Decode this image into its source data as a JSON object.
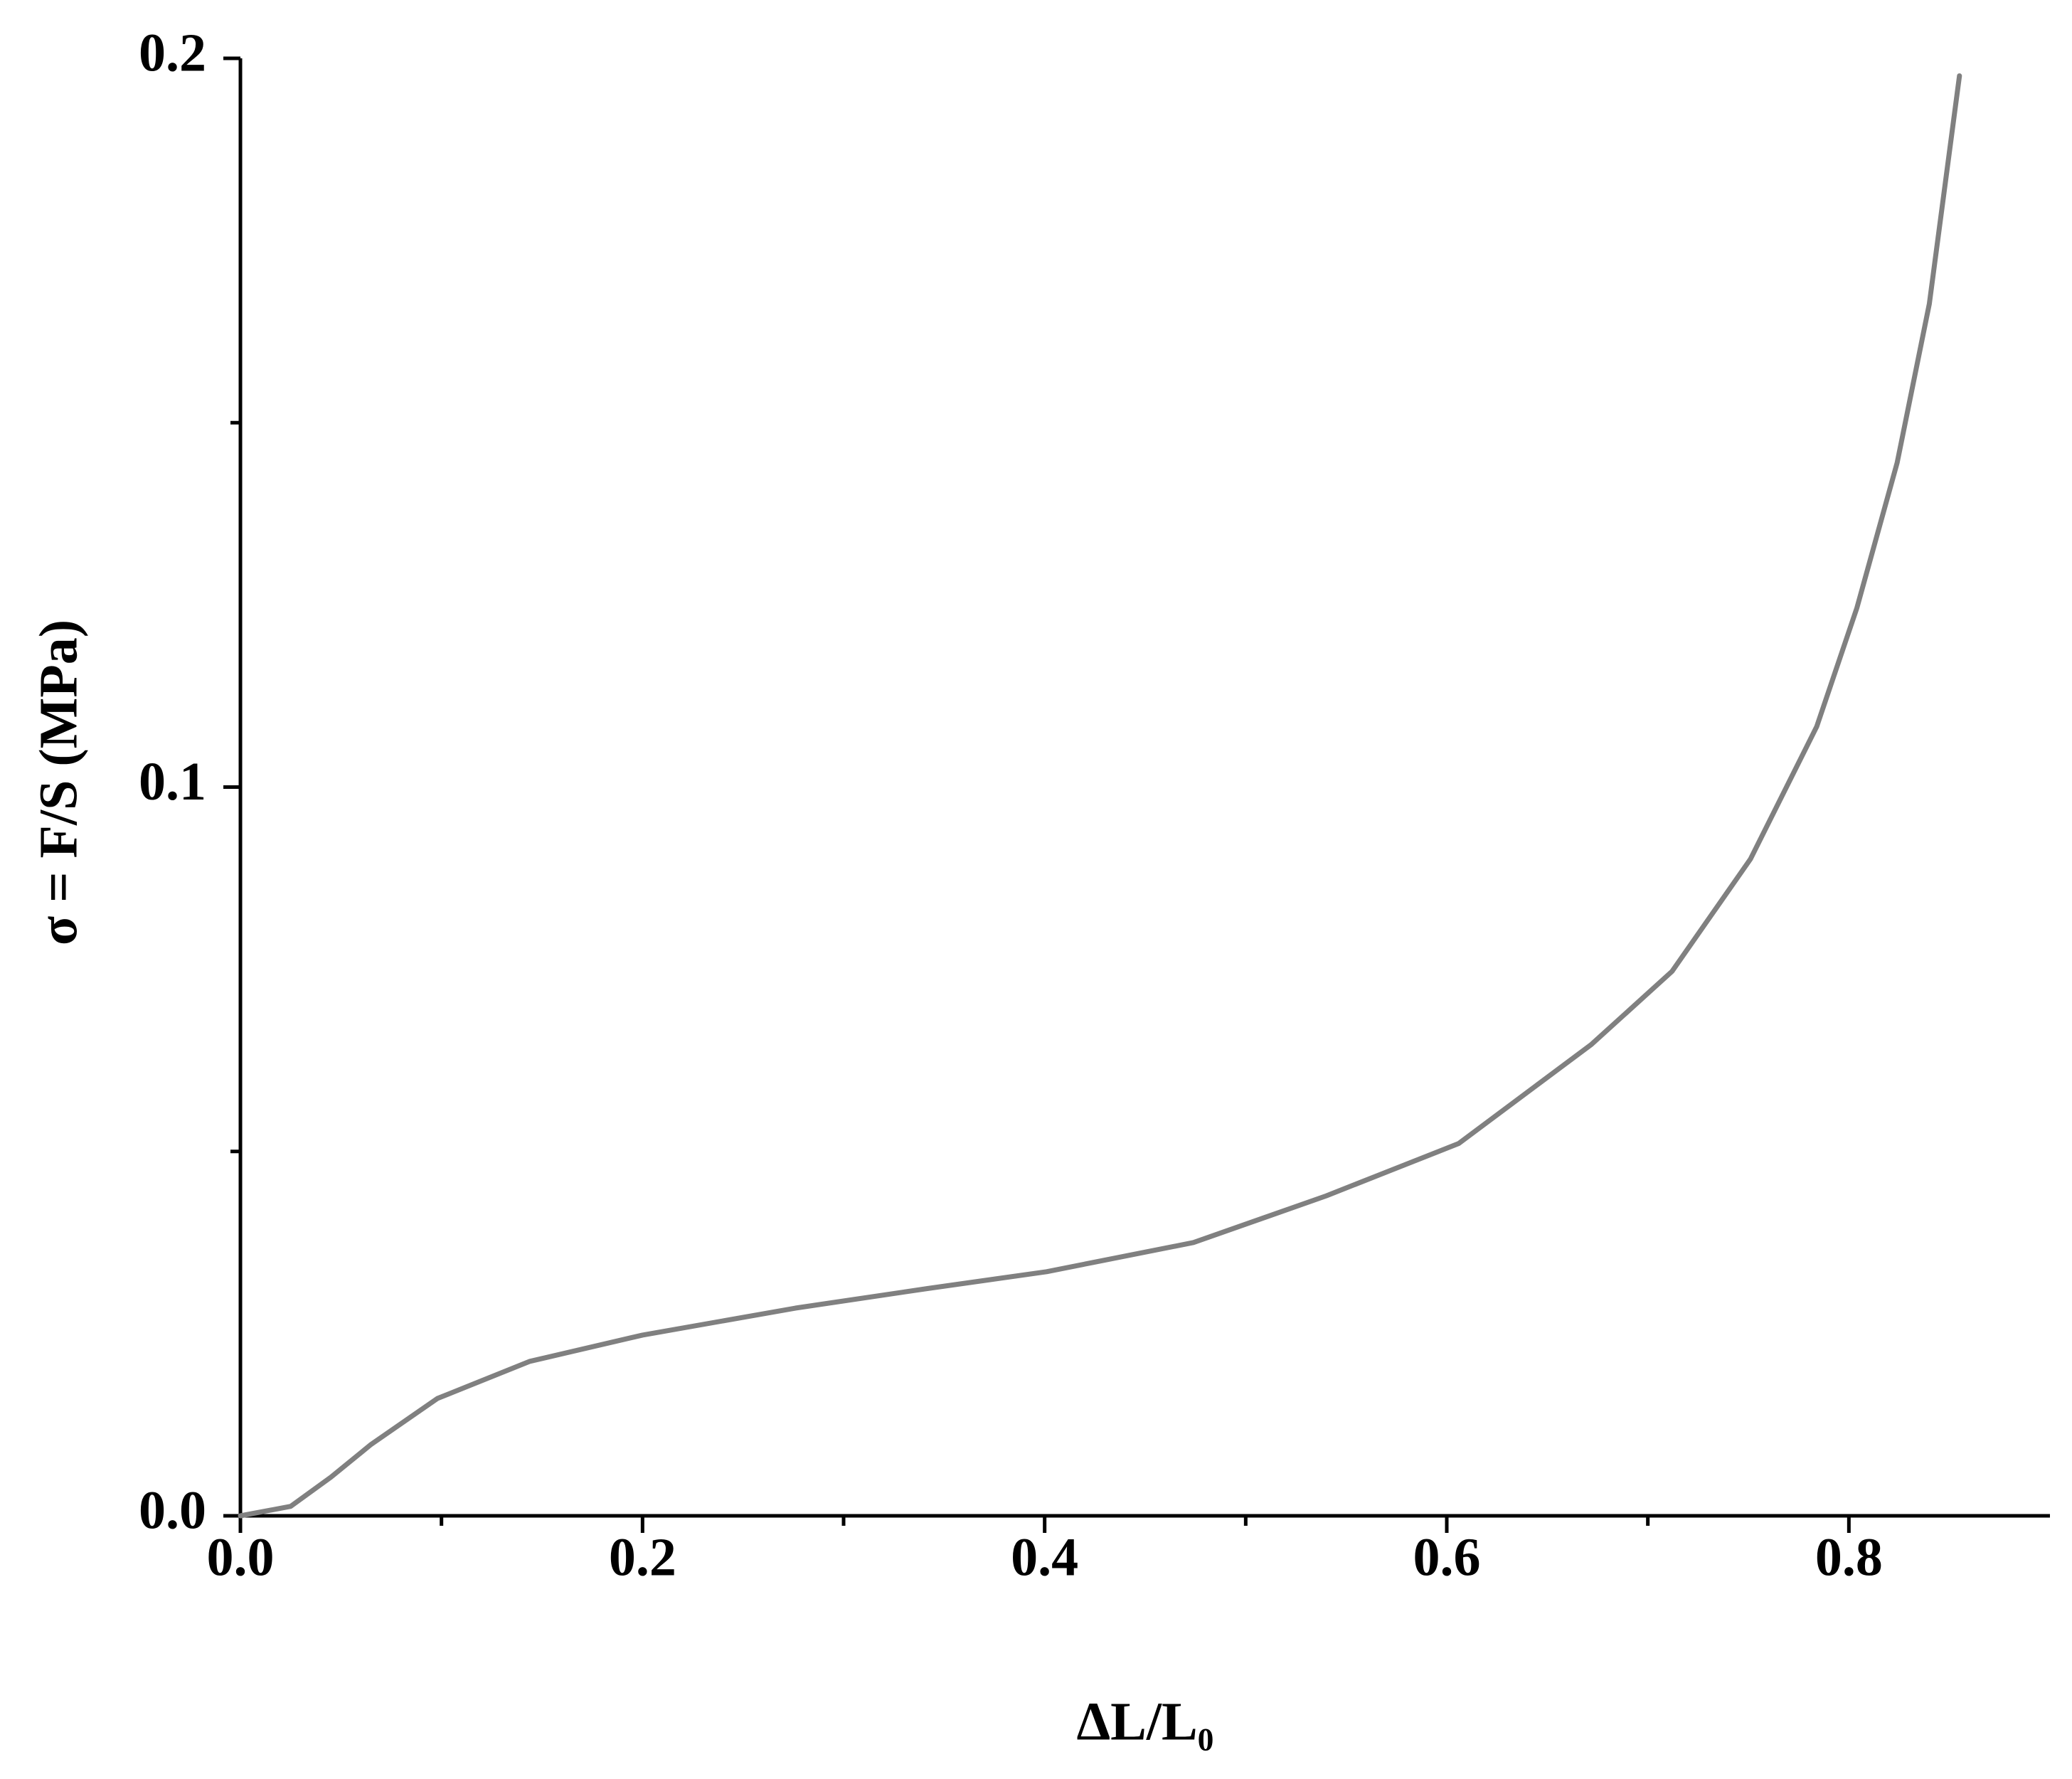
{
  "chart_data": {
    "type": "line",
    "x_label": "ΔL/L₀",
    "y_label": "σ = F/S (MPa)",
    "series": [
      {
        "color": "#808080",
        "x": [
          0,
          0.025,
          0.045,
          0.065,
          0.098,
          0.144,
          0.2,
          0.276,
          0.342,
          0.401,
          0.474,
          0.54,
          0.606,
          0.672,
          0.712,
          0.751,
          0.784,
          0.804,
          0.824,
          0.84,
          0.855
        ],
        "values": [
          0,
          0.0013,
          0.0053,
          0.0098,
          0.0161,
          0.0212,
          0.0248,
          0.0285,
          0.0312,
          0.0335,
          0.0375,
          0.0439,
          0.0511,
          0.0647,
          0.0747,
          0.0901,
          0.1083,
          0.1246,
          0.1445,
          0.1663,
          0.1976
        ]
      }
    ],
    "xlim": [
      0,
      0.9
    ],
    "ylim": [
      0,
      0.2
    ],
    "xticks": [
      {
        "value": 0,
        "label": "0.0"
      },
      0.2,
      0.4,
      0.6,
      0.8
    ],
    "yticks": [
      {
        "value": 0,
        "label": "0.0"
      },
      0.1,
      0.2
    ],
    "xminorticks": [
      0.1,
      0.3,
      0.5,
      0.7
    ],
    "yminorticks": [
      0.05,
      0.15
    ],
    "grid": false
  }
}
